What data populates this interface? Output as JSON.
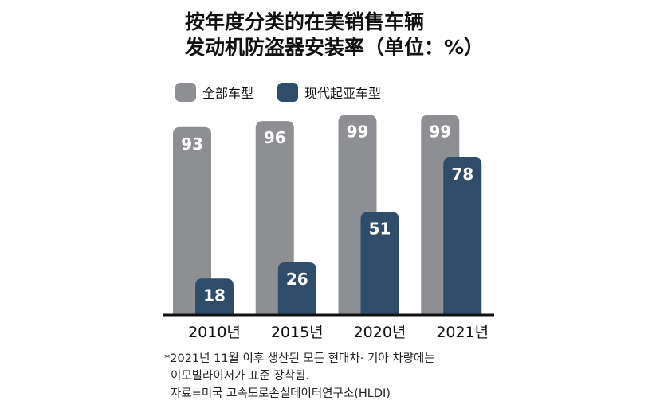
{
  "title_lines": [
    "按年度分类的在美销售车辆",
    "发动机防盗器安装率（单位：%）"
  ],
  "colors": {
    "all": "#8e8f93",
    "hk": "#2e4d6b",
    "axis": "#111111"
  },
  "chart_data": {
    "type": "bar",
    "categories": [
      "2010년",
      "2015년",
      "2020년",
      "2021년"
    ],
    "series": [
      {
        "name": "全部车型",
        "values": [
          93,
          96,
          99,
          99
        ]
      },
      {
        "name": "现代起亚车型",
        "values": [
          18,
          26,
          51,
          78
        ]
      }
    ],
    "title": "按年度分类的在美销售车辆 发动机防盗器安装率（单位：%）",
    "ylim": [
      0,
      100
    ],
    "grid": false,
    "legend": "top-left"
  },
  "notes": [
    "*2021년 11월 이후 생산된 모든 현대차· 기아 차량에는",
    "이모빌라이저가 표준 장착됨.",
    "자료=미국 고속도로손실데이터연구소(HLDI)"
  ]
}
